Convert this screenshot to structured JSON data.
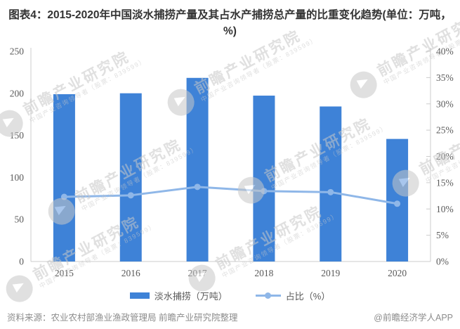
{
  "title": "图表4：2015-2020年中国淡水捕捞产量及其占水产捕捞总产量的比重变化趋势(单位：万吨，%)",
  "chart_data": {
    "type": "bar+line combo",
    "categories": [
      "2015",
      "2016",
      "2017",
      "2018",
      "2019",
      "2020"
    ],
    "series": [
      {
        "name": "淡水捕捞（万吨）",
        "type": "bar",
        "axis": "left",
        "color": "#3e82d7",
        "values": [
          199.0,
          200.1,
          218.4,
          197.3,
          184.4,
          145.8
        ]
      },
      {
        "name": "占比（%）",
        "type": "line",
        "axis": "right",
        "color": "#8fb7e8",
        "values": [
          12.3,
          12.6,
          14.2,
          13.4,
          13.2,
          11.0
        ]
      }
    ],
    "left_axis": {
      "min": 0,
      "max": 250,
      "step": 50,
      "labels": [
        "0",
        "50",
        "100",
        "150",
        "200",
        "250"
      ]
    },
    "right_axis": {
      "min": 0,
      "max": 40,
      "step": 5,
      "labels": [
        "0%",
        "5%",
        "10%",
        "15%",
        "20%",
        "25%",
        "30%",
        "35%",
        "40%"
      ]
    },
    "grid": false,
    "legend_position": "bottom",
    "axis_color": "#cccccc",
    "tick_text_color": "#595959"
  },
  "legend": {
    "items": [
      {
        "label": "淡水捕捞（万吨）",
        "swatch": "bar",
        "series": 0
      },
      {
        "label": "占比（%）",
        "swatch": "line",
        "series": 1
      }
    ]
  },
  "watermark": {
    "brand": "前瞻产业研究院",
    "tagline": "中国产业咨询领导者（股票：839599）",
    "logo": "qianzhan-logo-icon"
  },
  "footer": {
    "source": "资料来源：农业农村部渔业渔政管理局 前瞻产业研究院整理",
    "credit": "@前瞻经济学人APP"
  }
}
